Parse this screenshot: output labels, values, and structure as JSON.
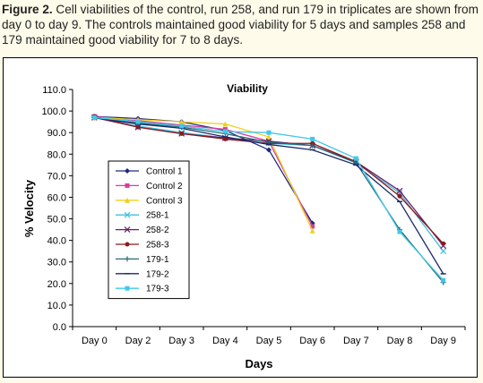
{
  "caption": {
    "figure_label": "Figure 2.",
    "text": " Cell viabilities of the control, run 258, and run 179 in triplicates are shown from day 0 to day 9. The controls maintained good viability for 5 days and samples 258 and 179 maintained good viability for 7 to 8 days."
  },
  "chart_data": {
    "type": "line",
    "title": "Viability",
    "xlabel": "Days",
    "ylabel": "% Velocity",
    "ylim": [
      0,
      110
    ],
    "yticks": [
      "0.0",
      "10.0",
      "20.0",
      "30.0",
      "40.0",
      "50.0",
      "60.0",
      "70.0",
      "80.0",
      "90.0",
      "100.0",
      "110.0"
    ],
    "categories": [
      "Day 0",
      "Day 2",
      "Day 3",
      "Day 4",
      "Day 5",
      "Day 6",
      "Day 7",
      "Day 8",
      "Day 9"
    ],
    "grid": false,
    "legend_position": "left-center",
    "series": [
      {
        "name": "Control 1",
        "color": "#1f2a7a",
        "marker": "diamond",
        "values": [
          97.5,
          96.5,
          95.0,
          91.0,
          82.0,
          48.0,
          null,
          null,
          null
        ]
      },
      {
        "name": "Control 2",
        "color": "#d040a0",
        "marker": "square",
        "values": [
          97.5,
          95.5,
          93.5,
          91.5,
          86.0,
          46.5,
          null,
          null,
          null
        ]
      },
      {
        "name": "Control 3",
        "color": "#f0d020",
        "marker": "triangle",
        "values": [
          97.0,
          96.0,
          95.0,
          94.0,
          88.0,
          44.5,
          null,
          null,
          null
        ]
      },
      {
        "name": "258-1",
        "color": "#40c0e0",
        "marker": "x",
        "values": [
          97.0,
          93.0,
          90.0,
          87.5,
          85.0,
          84.0,
          76.0,
          62.0,
          35.0
        ]
      },
      {
        "name": "258-2",
        "color": "#6a1f6a",
        "marker": "x",
        "values": [
          97.0,
          92.5,
          89.5,
          87.5,
          86.0,
          84.0,
          76.5,
          63.0,
          37.5
        ]
      },
      {
        "name": "258-3",
        "color": "#8b1a1a",
        "marker": "circle",
        "values": [
          97.5,
          92.5,
          89.5,
          87.0,
          85.0,
          85.0,
          76.5,
          60.5,
          38.5
        ]
      },
      {
        "name": "179-1",
        "color": "#2a6a7a",
        "marker": "plus",
        "values": [
          97.0,
          94.5,
          92.5,
          89.5,
          85.5,
          84.0,
          76.0,
          45.0,
          20.5
        ]
      },
      {
        "name": "179-2",
        "color": "#1a2a6a",
        "marker": "dash",
        "values": [
          97.0,
          94.0,
          92.0,
          88.0,
          84.5,
          82.0,
          75.0,
          58.0,
          24.5
        ]
      },
      {
        "name": "179-3",
        "color": "#40c8e8",
        "marker": "square",
        "values": [
          97.0,
          95.0,
          93.0,
          90.5,
          90.0,
          87.0,
          78.0,
          44.0,
          21.5
        ]
      }
    ]
  }
}
